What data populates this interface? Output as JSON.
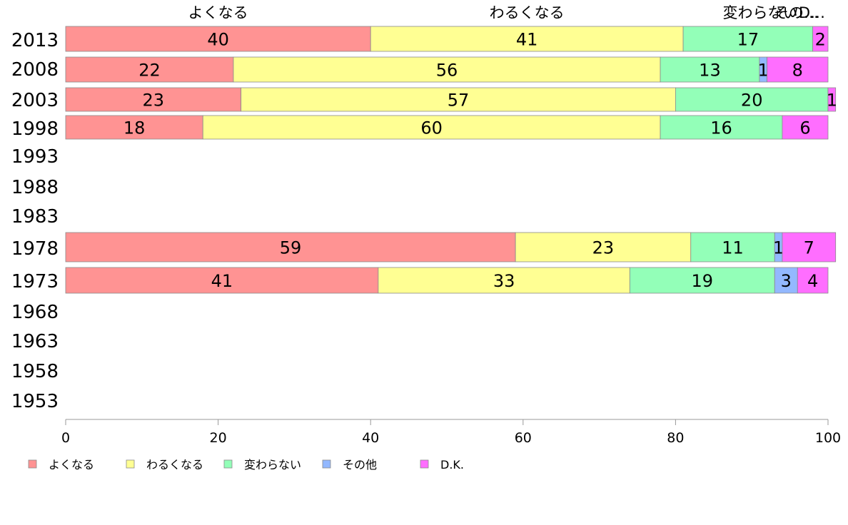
{
  "chart_data": {
    "type": "bar",
    "orientation": "horizontal",
    "stacked": true,
    "categories": [
      "2013",
      "2008",
      "2003",
      "1998",
      "1993",
      "1988",
      "1983",
      "1978",
      "1973",
      "1968",
      "1963",
      "1958",
      "1953"
    ],
    "series": [
      {
        "name": "よくなる",
        "color": "#ff9393",
        "values": [
          40,
          22,
          23,
          18,
          null,
          null,
          null,
          59,
          41,
          null,
          null,
          null,
          null
        ]
      },
      {
        "name": "わるくなる",
        "color": "#ffff93",
        "values": [
          41,
          56,
          57,
          60,
          null,
          null,
          null,
          23,
          33,
          null,
          null,
          null,
          null
        ]
      },
      {
        "name": "変わらない",
        "color": "#93ffb8",
        "values": [
          17,
          13,
          20,
          16,
          null,
          null,
          null,
          11,
          19,
          null,
          null,
          null,
          null
        ]
      },
      {
        "name": "その他",
        "color": "#93b8ff",
        "values": [
          0,
          1,
          0,
          0,
          null,
          null,
          null,
          1,
          3,
          null,
          null,
          null,
          null
        ]
      },
      {
        "name": "D.K.",
        "color": "#ff6eff",
        "values": [
          2,
          8,
          1,
          6,
          null,
          null,
          null,
          7,
          4,
          null,
          null,
          null,
          null
        ]
      }
    ],
    "top_labels": [
      "よくなる",
      "わるくなる",
      "変わらない",
      "その…",
      "D…"
    ],
    "x_ticks": [
      "0",
      "20",
      "40",
      "60",
      "80",
      "100"
    ],
    "xlim": [
      0,
      100
    ],
    "grid": false,
    "legend_position": "bottom-left"
  }
}
